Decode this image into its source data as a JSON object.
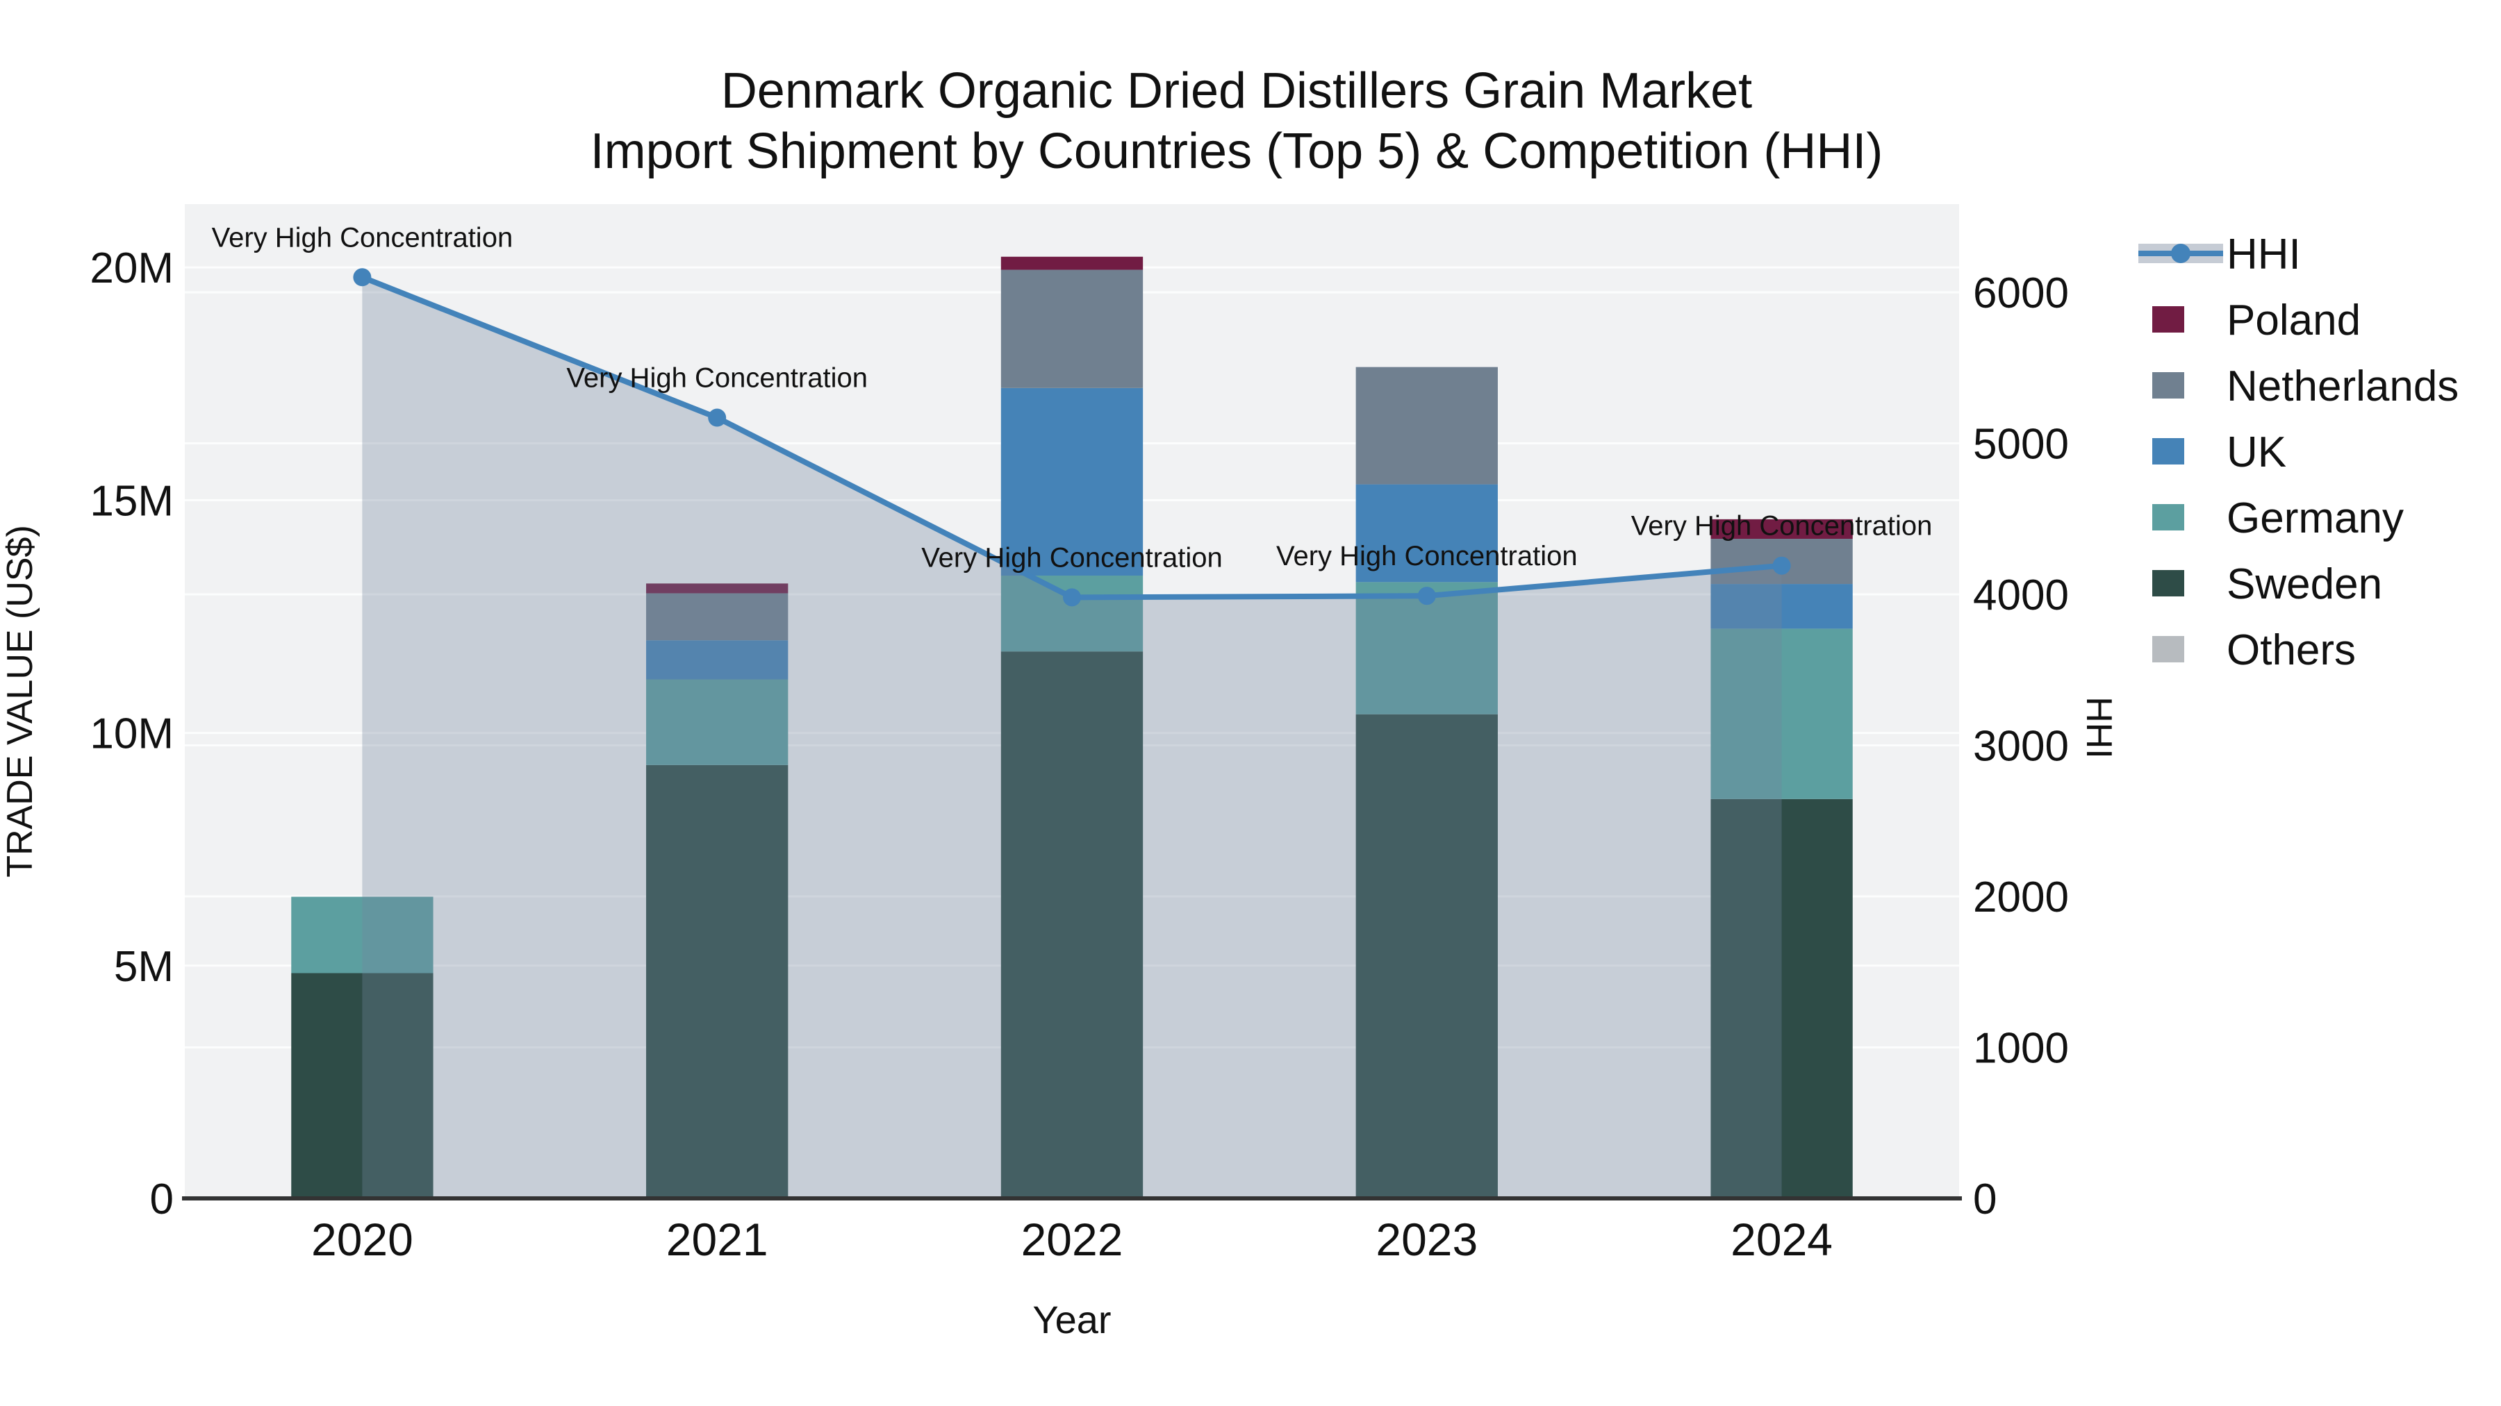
{
  "title": {
    "line1": "Denmark Organic Dried Distillers Grain Market",
    "line2": "Import Shipment by Countries (Top 5) & Competition (HHI)"
  },
  "colors": {
    "plot_background": "#f1f2f3",
    "gridline": "#ffffff",
    "axis_line": "#333333",
    "hhi_line": "#4383ba",
    "hhi_area_fill": "rgba(114,134,158,0.33)",
    "hhi_legend_band": "#c6ccd5",
    "poland": "#711c43",
    "netherlands": "#708090",
    "uk": "#4583b7",
    "germany": "#5c9fa0",
    "sweden": "#2e4c47",
    "others": "#b7bbbf",
    "text": "#111111"
  },
  "legend": {
    "items": [
      {
        "label": "HHI",
        "type": "line",
        "color": "#4383ba"
      },
      {
        "label": "Poland",
        "type": "swatch",
        "color": "#711c43"
      },
      {
        "label": "Netherlands",
        "type": "swatch",
        "color": "#708090"
      },
      {
        "label": "UK",
        "type": "swatch",
        "color": "#4583b7"
      },
      {
        "label": "Germany",
        "type": "swatch",
        "color": "#5c9fa0"
      },
      {
        "label": "Sweden",
        "type": "swatch",
        "color": "#2e4c47"
      },
      {
        "label": "Others",
        "type": "swatch",
        "color": "#b7bbbf"
      }
    ]
  },
  "chart_data": {
    "type": "combo-stacked-bar-line",
    "categories": [
      "2020",
      "2021",
      "2022",
      "2023",
      "2024"
    ],
    "x_label": "Year",
    "bar_unit": "millions US$",
    "series": [
      {
        "name": "Sweden",
        "color": "#2e4c47",
        "values": [
          4.84,
          9.31,
          11.75,
          10.4,
          8.58
        ]
      },
      {
        "name": "Germany",
        "color": "#5c9fa0",
        "values": [
          1.64,
          1.84,
          1.63,
          2.84,
          3.66
        ]
      },
      {
        "name": "UK",
        "color": "#4583b7",
        "values": [
          0,
          0.84,
          4.03,
          2.1,
          0.96
        ]
      },
      {
        "name": "Netherlands",
        "color": "#708090",
        "values": [
          0,
          1.01,
          2.54,
          2.52,
          0.97
        ]
      },
      {
        "name": "Poland",
        "color": "#711c43",
        "values": [
          0,
          0.21,
          0.28,
          0,
          0.42
        ]
      },
      {
        "name": "Others",
        "color": "#b7bbbf",
        "values": [
          0,
          0,
          0,
          0,
          0
        ]
      }
    ],
    "bar_totals": [
      6.48,
      13.21,
      20.23,
      17.86,
      14.59
    ],
    "line_series": {
      "name": "HHI",
      "color": "#4383ba",
      "values": [
        6100,
        5170,
        3980,
        3990,
        4190
      ],
      "area_fill": "rgba(114,134,158,0.33)",
      "markers": true
    },
    "y_left": {
      "label": "TRADE VALUE (US$)",
      "ticks": [
        "0",
        "5M",
        "10M",
        "15M",
        "20M"
      ],
      "tick_values": [
        0,
        5,
        10,
        15,
        20
      ],
      "range": [
        0,
        21.36
      ],
      "gridline_step": 5
    },
    "y_right": {
      "label": "HHI",
      "ticks": [
        "0",
        "1000",
        "2000",
        "3000",
        "4000",
        "5000",
        "6000"
      ],
      "tick_values": [
        0,
        1000,
        2000,
        3000,
        4000,
        5000,
        6000
      ],
      "range": [
        0,
        6584
      ],
      "gridline_step": 1000
    },
    "annotations": [
      "Very High Concentration",
      "Very High Concentration",
      "Very High Concentration",
      "Very High Concentration",
      "Very High Concentration"
    ],
    "legend_position": "right",
    "grid": true
  }
}
